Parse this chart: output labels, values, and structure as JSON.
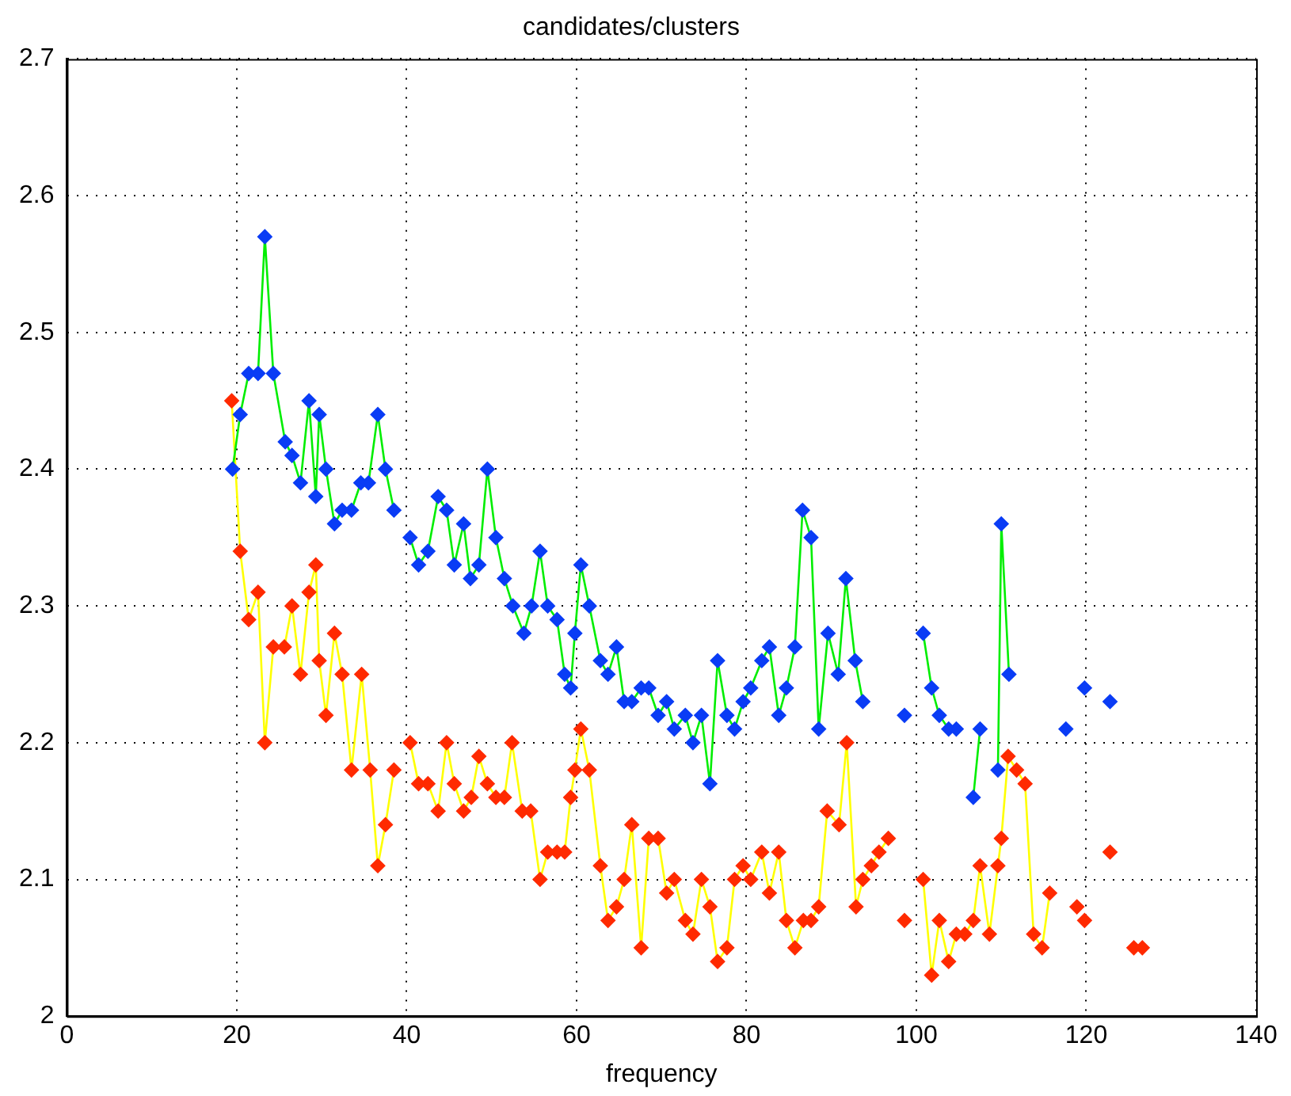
{
  "chart_data": {
    "type": "line",
    "title": "candidates/clusters",
    "xlabel": "frequency",
    "xlim": [
      0,
      140
    ],
    "xticks": [
      0,
      20,
      40,
      60,
      80,
      100,
      120,
      140
    ],
    "ylim": [
      2,
      2.7
    ],
    "yticks": [
      2,
      2.1,
      2.2,
      2.3,
      2.4,
      2.5,
      2.6,
      2.7
    ],
    "grid": true,
    "legend": false,
    "marker": "diamond",
    "line_style": "solid",
    "series": [
      {
        "color": "#0a3cf5",
        "x": [
          19.5,
          20.4,
          21.4,
          22.5,
          23.3,
          24.3,
          25.7,
          26.5,
          27.5,
          28.5,
          29.3,
          29.7,
          30.5,
          31.5,
          32.4,
          33.5,
          34.6,
          35.5,
          36.6,
          37.5,
          38.5,
          39.5,
          40.4,
          41.4,
          42.5,
          43.7,
          44.7,
          45.6,
          46.7,
          47.5,
          48.5,
          49.5,
          50.5,
          51.5,
          52.5,
          53.8,
          54.7,
          55.7,
          56.6,
          57.7,
          58.6,
          59.3,
          59.8,
          60.5,
          61.5,
          62.8,
          63.7,
          64.7,
          65.6,
          66.5,
          67.6,
          68.5,
          69.6,
          70.6,
          71.5,
          72.8,
          73.7,
          74.7,
          75.7,
          76.6,
          77.7,
          78.6,
          79.6,
          80.5,
          81.8,
          82.7,
          83.8,
          84.7,
          85.7,
          86.6,
          87.6,
          88.5,
          89.6,
          90.8,
          91.7,
          92.8,
          93.7,
          96,
          98.6,
          99.7,
          100.8,
          101.8,
          102.7,
          103.8,
          104.7,
          105.7,
          106.7,
          107.5,
          108.6,
          109.6,
          110,
          110.9,
          114,
          117.6,
          118.7,
          119.8,
          121,
          122.8
        ],
        "values": [
          2.4,
          2.44,
          2.47,
          2.47,
          2.57,
          2.47,
          2.42,
          2.41,
          2.39,
          2.45,
          2.38,
          2.44,
          2.4,
          2.36,
          2.37,
          2.37,
          2.39,
          2.39,
          2.44,
          2.4,
          2.37,
          null,
          2.35,
          2.33,
          2.34,
          2.38,
          2.37,
          2.33,
          2.36,
          2.32,
          2.33,
          2.4,
          2.35,
          2.32,
          2.3,
          2.28,
          2.3,
          2.34,
          2.3,
          2.29,
          2.25,
          2.24,
          2.28,
          2.33,
          2.3,
          2.26,
          2.25,
          2.27,
          2.23,
          2.23,
          2.24,
          2.24,
          2.22,
          2.23,
          2.21,
          2.22,
          2.2,
          2.22,
          2.17,
          2.26,
          2.22,
          2.21,
          2.23,
          2.24,
          2.26,
          2.27,
          2.22,
          2.24,
          2.27,
          2.37,
          2.35,
          2.21,
          2.28,
          2.25,
          2.32,
          2.26,
          2.23,
          null,
          2.22,
          null,
          2.28,
          2.24,
          2.22,
          2.21,
          2.21,
          null,
          2.16,
          2.21,
          null,
          2.18,
          2.36,
          2.25,
          null,
          2.21,
          null,
          2.24,
          null,
          2.23
        ]
      },
      {
        "color": "#ff2a00",
        "x": [
          19.4,
          20.4,
          21.4,
          22.5,
          23.3,
          24.3,
          25.6,
          26.5,
          27.5,
          28.5,
          29.3,
          29.7,
          30.5,
          31.5,
          32.4,
          33.5,
          34.7,
          35.7,
          36.6,
          37.5,
          38.5,
          39.5,
          40.4,
          41.4,
          42.5,
          43.7,
          44.7,
          45.6,
          46.7,
          47.6,
          48.5,
          49.5,
          50.5,
          51.5,
          52.4,
          53.6,
          54.6,
          55.7,
          56.6,
          57.7,
          58.6,
          59.3,
          59.8,
          60.5,
          61.5,
          62.8,
          63.7,
          64.7,
          65.6,
          66.5,
          67.6,
          68.5,
          69.6,
          70.6,
          71.5,
          72.8,
          73.7,
          74.7,
          75.7,
          76.6,
          77.7,
          78.6,
          79.6,
          80.5,
          81.8,
          82.7,
          83.8,
          84.7,
          85.7,
          86.7,
          87.6,
          88.5,
          89.5,
          90.9,
          91.8,
          92.9,
          93.7,
          94.7,
          95.6,
          96.7,
          97.6,
          98.6,
          99.7,
          100.8,
          101.8,
          102.7,
          103.8,
          104.7,
          105.7,
          106.7,
          107.5,
          108.6,
          109.6,
          110,
          110.8,
          111.8,
          112.8,
          113.8,
          114.8,
          115.7,
          117,
          118.9,
          119.4,
          119.8,
          121,
          122.8,
          124,
          125.6,
          126.6
        ],
        "values": [
          2.45,
          2.34,
          2.29,
          2.31,
          2.2,
          2.27,
          2.27,
          2.3,
          2.25,
          2.31,
          2.33,
          2.26,
          2.22,
          2.28,
          2.25,
          2.18,
          2.25,
          2.18,
          2.11,
          2.14,
          2.18,
          null,
          2.2,
          2.17,
          2.17,
          2.15,
          2.2,
          2.17,
          2.15,
          2.16,
          2.19,
          2.17,
          2.16,
          2.16,
          2.2,
          2.15,
          2.15,
          2.1,
          2.12,
          2.12,
          2.12,
          2.16,
          2.18,
          2.21,
          2.18,
          2.11,
          2.07,
          2.08,
          2.1,
          2.14,
          2.05,
          2.13,
          2.13,
          2.09,
          2.1,
          2.07,
          2.06,
          2.1,
          2.08,
          2.04,
          2.05,
          2.1,
          2.11,
          2.1,
          2.12,
          2.09,
          2.12,
          2.07,
          2.05,
          2.07,
          2.07,
          2.08,
          2.15,
          2.14,
          2.2,
          2.08,
          2.1,
          2.11,
          2.12,
          2.13,
          null,
          2.07,
          null,
          2.1,
          2.03,
          2.07,
          2.04,
          2.06,
          2.06,
          2.07,
          2.11,
          2.06,
          2.11,
          2.13,
          2.19,
          2.18,
          2.17,
          2.06,
          2.05,
          2.09,
          null,
          2.08,
          null,
          2.07,
          null,
          2.12,
          null,
          2.05,
          2.05
        ]
      }
    ]
  }
}
